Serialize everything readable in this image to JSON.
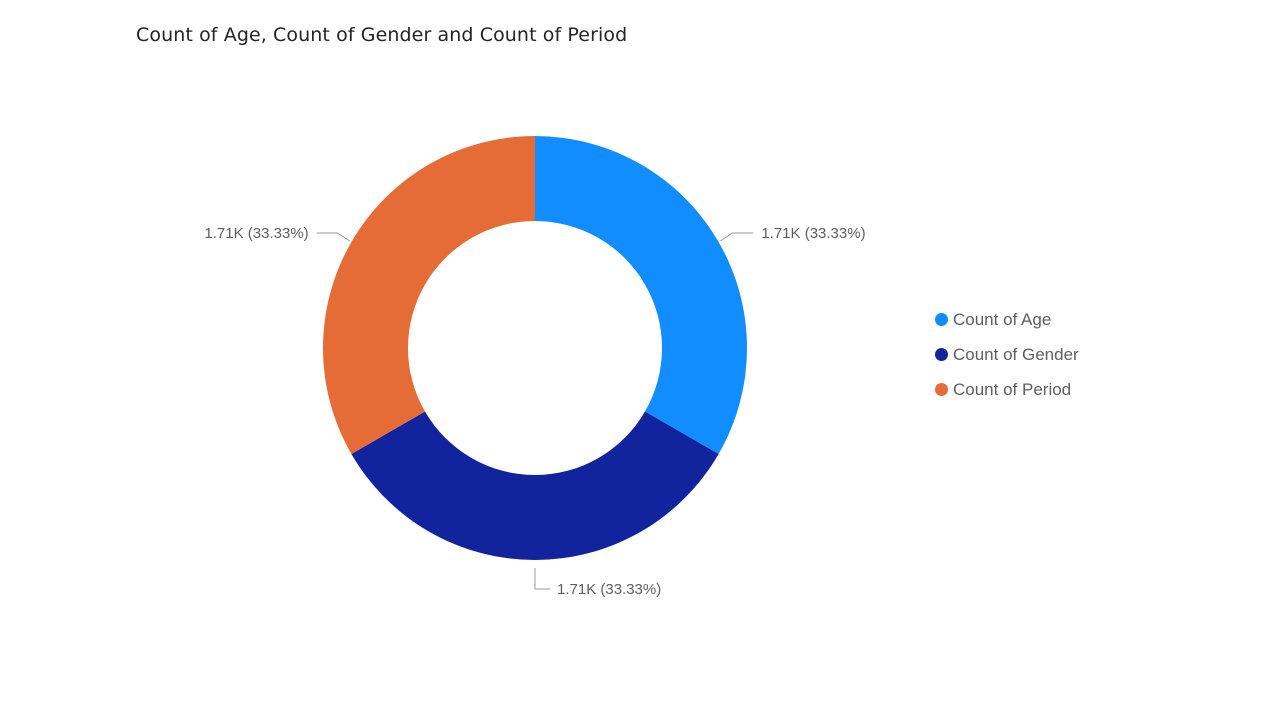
{
  "chart_data": {
    "type": "pie",
    "variant": "donut",
    "title": "Count of Age, Count of Gender and Count of Period",
    "slices": [
      {
        "name": "Count of Age",
        "value": 1710,
        "percent": 33.33,
        "label": "1.71K (33.33%)",
        "color": "#118DFF"
      },
      {
        "name": "Count of Gender",
        "value": 1710,
        "percent": 33.33,
        "label": "1.71K (33.33%)",
        "color": "#12239E"
      },
      {
        "name": "Count of Period",
        "value": 1710,
        "percent": 33.33,
        "label": "1.71K (33.33%)",
        "color": "#E66C37"
      }
    ],
    "legend_position": "right"
  }
}
